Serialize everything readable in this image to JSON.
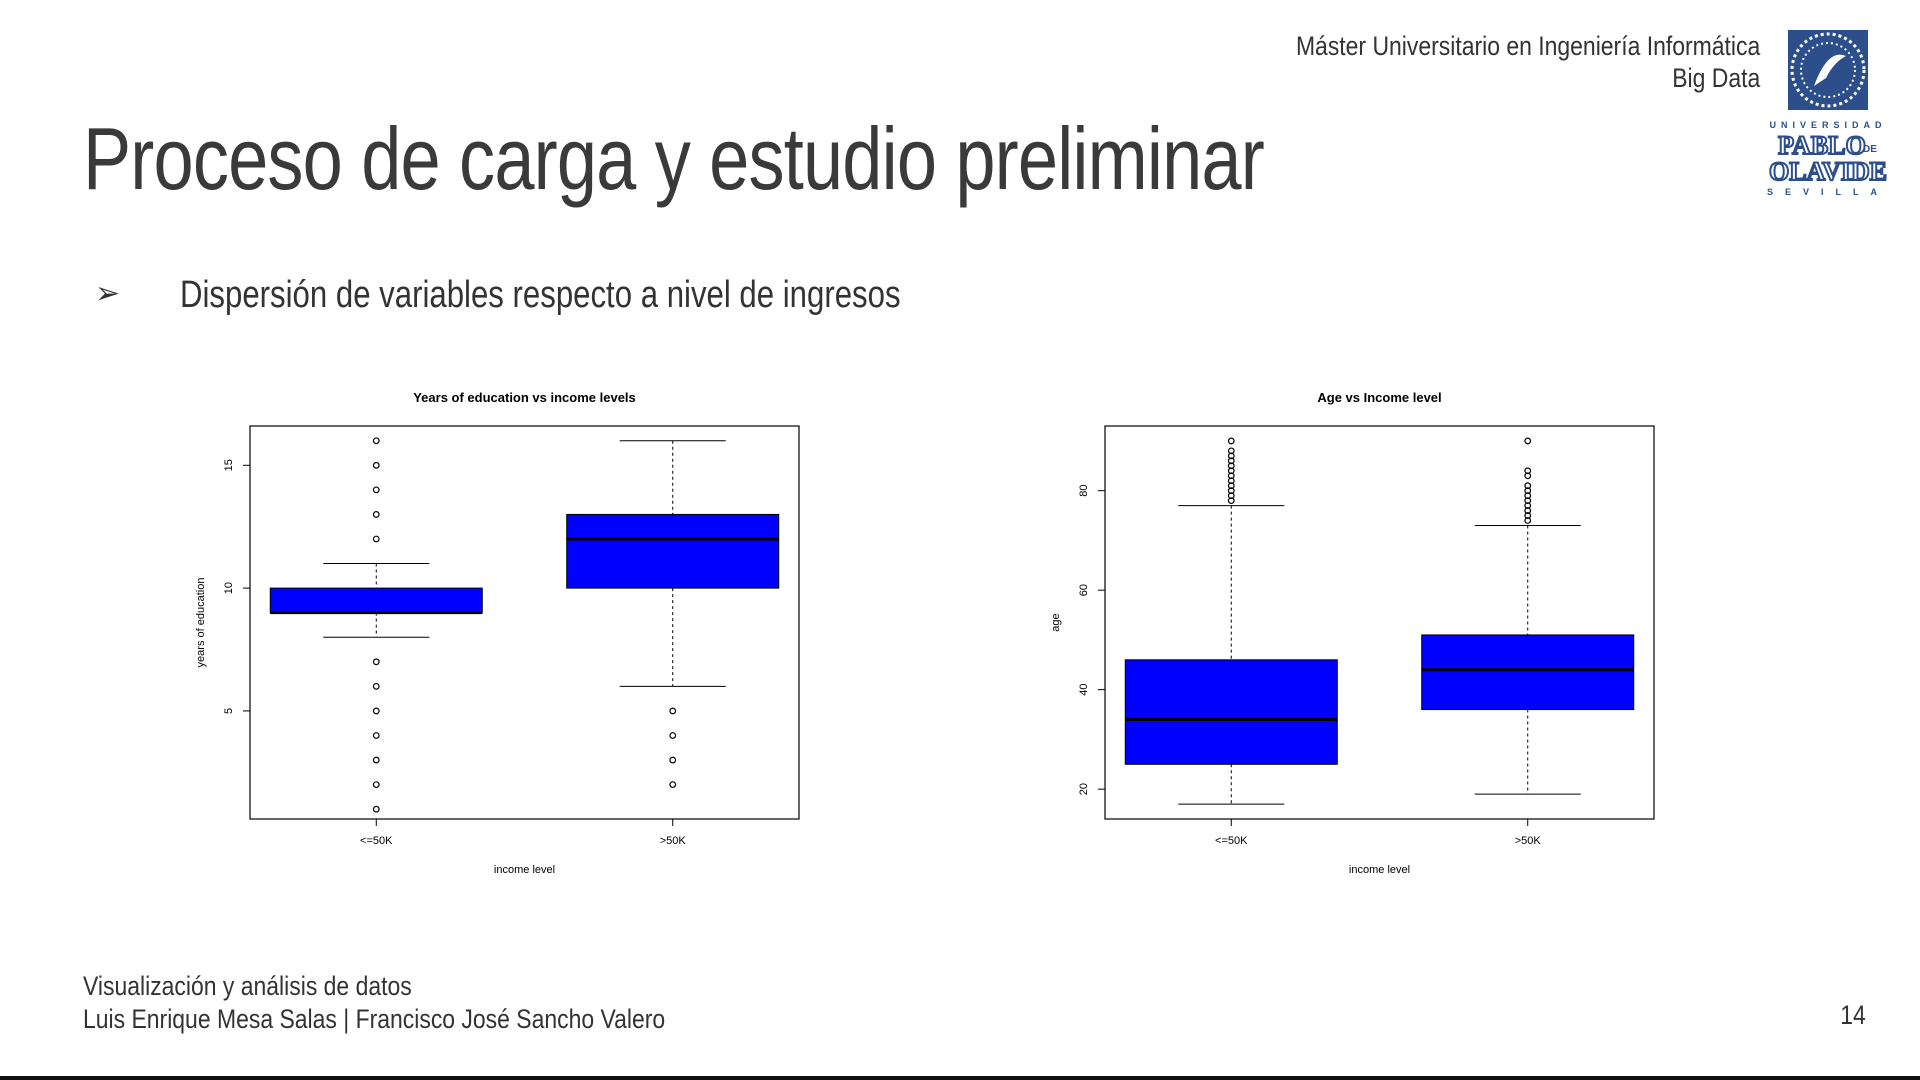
{
  "header": {
    "line1": "Máster Universitario en Ingeniería Informática",
    "line2": "Big Data",
    "logo_top": "UNIVERSIDAD",
    "logo_main1": "PABLO",
    "logo_de": "DE",
    "logo_main2": "OLAVIDE",
    "logo_bottom": "SEVILLA"
  },
  "title": "Proceso de carga y estudio preliminar",
  "bullet": "Dispersión de variables respecto a nivel de ingresos",
  "footer": {
    "line1": "Visualización y análisis de datos",
    "line2": "Luis Enrique Mesa Salas | Francisco José Sancho Valero",
    "page": "14"
  },
  "colors": {
    "box_fill": "#0000ff",
    "text": "#333333"
  },
  "chart_data": [
    {
      "type": "box",
      "title": "Years of education vs income levels",
      "xlabel": "income level",
      "ylabel": "years of education",
      "ylim": [
        0.6,
        16.6
      ],
      "yticks": [
        5,
        10,
        15
      ],
      "categories": [
        "<=50K",
        ">50K"
      ],
      "boxes": [
        {
          "q1": 9,
          "median": 9,
          "q3": 10,
          "whisker_low": 8,
          "whisker_high": 11,
          "outliers": [
            1,
            2,
            3,
            4,
            5,
            6,
            7,
            12,
            13,
            14,
            15,
            16
          ]
        },
        {
          "q1": 10,
          "median": 12,
          "q3": 13,
          "whisker_low": 6,
          "whisker_high": 16,
          "outliers": [
            2,
            3,
            4,
            5
          ]
        }
      ]
    },
    {
      "type": "box",
      "title": "Age vs Income level",
      "xlabel": "income level",
      "ylabel": "age",
      "ylim": [
        14,
        93
      ],
      "yticks": [
        20,
        40,
        60,
        80
      ],
      "categories": [
        "<=50K",
        ">50K"
      ],
      "boxes": [
        {
          "q1": 25,
          "median": 34,
          "q3": 46,
          "whisker_low": 17,
          "whisker_high": 77,
          "outliers": [
            78,
            79,
            80,
            81,
            82,
            83,
            84,
            85,
            86,
            87,
            88,
            90
          ]
        },
        {
          "q1": 36,
          "median": 44,
          "q3": 51,
          "whisker_low": 19,
          "whisker_high": 73,
          "outliers": [
            74,
            75,
            76,
            77,
            78,
            79,
            80,
            81,
            83,
            84,
            90
          ]
        }
      ]
    }
  ]
}
